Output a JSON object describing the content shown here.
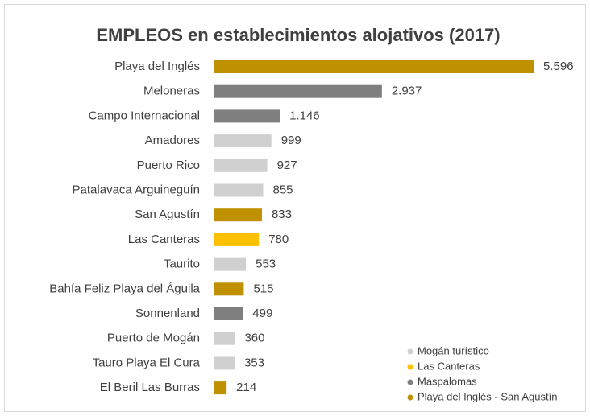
{
  "chart_data": {
    "type": "bar",
    "orientation": "horizontal",
    "title": "EMPLEOS en establecimientos alojativos (2017)",
    "categories": [
      "Playa del Inglés",
      "Meloneras",
      "Campo Internacional",
      "Amadores",
      "Puerto Rico",
      "Patalavaca Arguineguín",
      "San Agustín",
      "Las Canteras",
      "Taurito",
      "Bahía Feliz Playa del Águila",
      "Sonnenland",
      "Puerto de Mogán",
      "Tauro Playa El Cura",
      "El Beril Las Burras"
    ],
    "values": [
      5596,
      2937,
      1146,
      999,
      927,
      855,
      833,
      780,
      553,
      515,
      499,
      360,
      353,
      214
    ],
    "value_labels": [
      "5.596",
      "2.937",
      "1.146",
      "999",
      "927",
      "855",
      "833",
      "780",
      "553",
      "515",
      "499",
      "360",
      "353",
      "214"
    ],
    "colors": [
      "#bf9000",
      "#7f7f7f",
      "#7f7f7f",
      "#d0d0d0",
      "#d0d0d0",
      "#d0d0d0",
      "#bf9000",
      "#ffc000",
      "#d0d0d0",
      "#bf9000",
      "#7f7f7f",
      "#d0d0d0",
      "#d0d0d0",
      "#bf9000"
    ],
    "legend": [
      {
        "name": "Mogán turístico",
        "color": "#d0d0d0"
      },
      {
        "name": "Las Canteras",
        "color": "#ffc000"
      },
      {
        "name": "Maspalomas",
        "color": "#7f7f7f"
      },
      {
        "name": "Playa del Inglés - San Agustín",
        "color": "#bf9000"
      }
    ]
  }
}
